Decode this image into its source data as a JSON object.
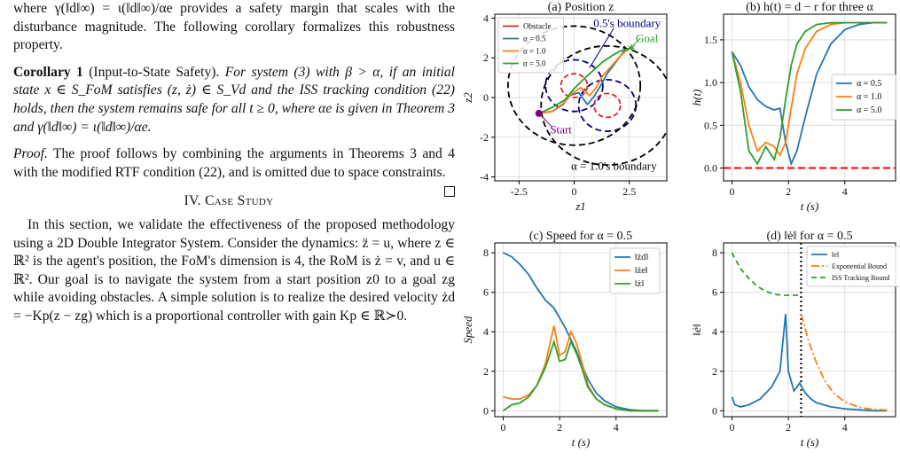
{
  "text": {
    "p1": "where γ(‖d‖∞) = ι(‖d‖∞)/αe provides a safety margin that scales with the disturbance magnitude. The following corollary formalizes this robustness property.",
    "corollary_label": "Corollary 1",
    "corollary_name": "(Input-to-State Safety).",
    "corollary_body": "For system (3) with β > α, if an initial state x ∈ S_FoM satisfies (z, ż) ∈ S_Vd and the ISS tracking condition (22) holds, then the system remains safe for all t ≥ 0, where αe is given in Theorem 3 and γ(‖d‖∞) = ι(‖d‖∞)/αe.",
    "proof_label": "Proof.",
    "proof_body": "The proof follows by combining the arguments in Theorems 3 and 4 with the modified RTF condition (22), and is omitted due to space constraints.",
    "section_heading": "IV. Case Study",
    "p2": "In this section, we validate the effectiveness of the proposed methodology using a 2D Double Integrator System. Consider the dynamics: z̈ = u, where z ∈ ℝ² is the agent's position, the FoM's dimension is 4, the RoM is ż = v, and u ∈ ℝ². Our goal is to navigate the system from a start position z0 to a goal zg while avoiding obstacles. A simple solution is to realize the desired velocity żd = −Kp(z − zg) which is a proportional controller with gain Kp ∈ ℝ≻0."
  },
  "chart_data": [
    {
      "type": "line",
      "title": "(a) Position z",
      "xlabel": "z1",
      "ylabel": "z2",
      "xlim": [
        -3.6,
        4.2
      ],
      "ylim": [
        -4.2,
        4.2
      ],
      "xticks": [
        -2.5,
        0.0,
        2.5
      ],
      "yticks": [
        -4,
        -2,
        0,
        2,
        4
      ],
      "legend_position": "top-left",
      "series": [
        {
          "name": "Obstacle",
          "color": "#d62728",
          "dashed": true
        },
        {
          "name": "α = 0.5",
          "color": "#1f77b4",
          "x": [
            -1.6,
            -1.0,
            -0.5,
            -0.2,
            0.2,
            0.6,
            0.9,
            1.2,
            1.5,
            1.9,
            2.3,
            2.6
          ],
          "y": [
            -0.8,
            -0.7,
            -0.35,
            0.1,
            0.25,
            -0.35,
            0.05,
            0.6,
            1.2,
            1.8,
            2.4,
            2.5
          ]
        },
        {
          "name": "α = 1.0",
          "color": "#ff7f0e",
          "x": [
            -1.6,
            -1.0,
            -0.5,
            -0.1,
            0.3,
            0.7,
            1.0,
            1.3,
            1.7,
            2.1,
            2.4,
            2.6
          ],
          "y": [
            -0.8,
            -0.7,
            -0.3,
            0.2,
            0.5,
            0.1,
            0.5,
            1.1,
            1.6,
            2.1,
            2.4,
            2.5
          ]
        },
        {
          "name": "α = 5.0",
          "color": "#2ca02c",
          "x": [
            -1.6,
            -1.0,
            -0.4,
            0.0,
            0.5,
            0.9,
            1.3,
            1.7,
            2.1,
            2.6
          ],
          "y": [
            -0.8,
            -0.5,
            -0.1,
            0.45,
            1.0,
            1.4,
            1.8,
            2.1,
            2.35,
            2.5
          ]
        }
      ],
      "obstacles": [
        {
          "cx": 0.0,
          "cy": 0.6,
          "r": 0.6
        },
        {
          "cx": 1.5,
          "cy": -0.4,
          "r": 0.6
        }
      ],
      "boundaries": [
        {
          "name": "α = 0.5's boundary",
          "cx": 0.0,
          "cy": 0.6,
          "r": 1.3,
          "color": "#000080"
        },
        {
          "name": "α = 0.5's boundary",
          "cx": 1.5,
          "cy": -0.4,
          "r": 1.3,
          "color": "#000080"
        },
        {
          "name": "α = 1.0's boundary",
          "cx": 0.0,
          "cy": 0.6,
          "r": 3.0,
          "color": "#000000"
        },
        {
          "name": "α = 1.0's boundary",
          "cx": 1.5,
          "cy": -0.4,
          "r": 3.0,
          "color": "#000000"
        }
      ],
      "annotations": [
        "0.5's boundary",
        "Goal",
        "Start",
        "α = 1.0's boundary"
      ],
      "start": [
        -1.6,
        -0.8
      ],
      "goal": [
        2.6,
        2.5
      ],
      "grid": true
    },
    {
      "type": "line",
      "title": "(b) h(t) = d − r for three α",
      "xlabel": "t (s)",
      "ylabel": "h(t)",
      "xlim": [
        -0.3,
        5.8
      ],
      "ylim": [
        -0.15,
        1.8
      ],
      "xticks": [
        0,
        2,
        4
      ],
      "yticks": [
        0.0,
        0.5,
        1.0,
        1.5
      ],
      "legend_position": "center-right",
      "zero_line_color": "#ff0000",
      "x": [
        0,
        0.3,
        0.6,
        0.9,
        1.2,
        1.5,
        1.7,
        1.9,
        2.1,
        2.3,
        2.6,
        3.0,
        3.5,
        4.0,
        4.5,
        5.0,
        5.5
      ],
      "series": [
        {
          "name": "α = 0.5",
          "color": "#1f77b4",
          "values": [
            1.36,
            1.2,
            0.95,
            0.8,
            0.72,
            0.68,
            0.7,
            0.3,
            0.05,
            0.2,
            0.6,
            1.1,
            1.45,
            1.62,
            1.68,
            1.7,
            1.7
          ]
        },
        {
          "name": "α = 1.0",
          "color": "#ff7f0e",
          "values": [
            1.36,
            1.0,
            0.5,
            0.2,
            0.3,
            0.25,
            0.15,
            0.3,
            0.7,
            1.1,
            1.4,
            1.6,
            1.68,
            1.7,
            1.7,
            1.7,
            1.7
          ]
        },
        {
          "name": "α = 5.0",
          "color": "#2ca02c",
          "values": [
            1.36,
            0.9,
            0.2,
            0.05,
            0.25,
            0.1,
            0.35,
            0.8,
            1.2,
            1.45,
            1.6,
            1.68,
            1.7,
            1.7,
            1.7,
            1.7,
            1.7
          ]
        }
      ],
      "grid": true
    },
    {
      "type": "line",
      "title": "(c) Speed for α = 0.5",
      "xlabel": "t (s)",
      "ylabel": "Speed",
      "xlim": [
        -0.3,
        5.8
      ],
      "ylim": [
        -0.3,
        8.5
      ],
      "xticks": [
        0,
        2,
        4
      ],
      "yticks": [
        0,
        2,
        4,
        6,
        8
      ],
      "legend_position": "top-right",
      "x": [
        0,
        0.3,
        0.6,
        0.9,
        1.2,
        1.5,
        1.8,
        2.0,
        2.2,
        2.4,
        2.6,
        2.8,
        3.0,
        3.3,
        3.6,
        4.0,
        4.5,
        5.0,
        5.5
      ],
      "series": [
        {
          "name": "‖żd‖",
          "color": "#1f77b4",
          "values": [
            8.0,
            7.8,
            7.4,
            6.9,
            6.2,
            5.6,
            5.2,
            4.7,
            4.2,
            3.6,
            3.0,
            2.3,
            1.6,
            0.9,
            0.5,
            0.2,
            0.05,
            0.0,
            0.0
          ]
        },
        {
          "name": "‖że‖",
          "color": "#ff7f0e",
          "values": [
            0.7,
            0.6,
            0.6,
            0.8,
            1.3,
            2.4,
            4.3,
            2.8,
            3.0,
            4.0,
            3.4,
            2.4,
            1.3,
            0.6,
            0.3,
            0.1,
            0.0,
            0.0,
            0.0
          ]
        },
        {
          "name": "‖ż‖",
          "color": "#2ca02c",
          "values": [
            0.0,
            0.3,
            0.4,
            0.7,
            1.3,
            2.2,
            3.5,
            2.5,
            2.6,
            3.5,
            2.9,
            2.1,
            1.2,
            0.6,
            0.3,
            0.1,
            0.0,
            0.0,
            0.0
          ]
        }
      ],
      "grid": true
    },
    {
      "type": "line",
      "title": "(d) ‖ė‖ for α = 0.5",
      "xlabel": "t (s)",
      "ylabel": "‖ė‖",
      "xlim": [
        -0.3,
        5.8
      ],
      "ylim": [
        -0.3,
        8.5
      ],
      "xticks": [
        0,
        2,
        4
      ],
      "yticks": [
        0,
        2,
        4,
        6,
        8
      ],
      "legend_position": "top-right",
      "vertical_line_t": 2.45,
      "series": [
        {
          "name": "‖ė‖",
          "color": "#1f77b4",
          "x": [
            0,
            0.1,
            0.3,
            0.6,
            1.0,
            1.4,
            1.7,
            1.9,
            2.0,
            2.2,
            2.4,
            2.6,
            2.8,
            3.0,
            3.5,
            4.0,
            4.5,
            5.0,
            5.5
          ],
          "values": [
            0.7,
            0.3,
            0.2,
            0.3,
            0.6,
            1.2,
            2.0,
            4.9,
            2.0,
            1.0,
            1.4,
            0.9,
            0.6,
            0.4,
            0.2,
            0.1,
            0.05,
            0.0,
            0.0
          ]
        },
        {
          "name": "Exponential Bound",
          "color": "#ff7f0e",
          "x": [
            2.45,
            2.7,
            3.0,
            3.3,
            3.6,
            4.0,
            4.5,
            5.0,
            5.5
          ],
          "values": [
            4.9,
            3.6,
            2.4,
            1.5,
            0.9,
            0.45,
            0.18,
            0.07,
            0.03
          ]
        },
        {
          "name": "ISS Tracking Bound",
          "color": "#2ca02c",
          "x": [
            0,
            0.3,
            0.6,
            0.9,
            1.2,
            1.5,
            1.8,
            2.1,
            2.45
          ],
          "values": [
            8.0,
            7.2,
            6.7,
            6.3,
            6.05,
            5.9,
            5.85,
            5.85,
            5.85
          ]
        }
      ],
      "grid": true
    }
  ]
}
